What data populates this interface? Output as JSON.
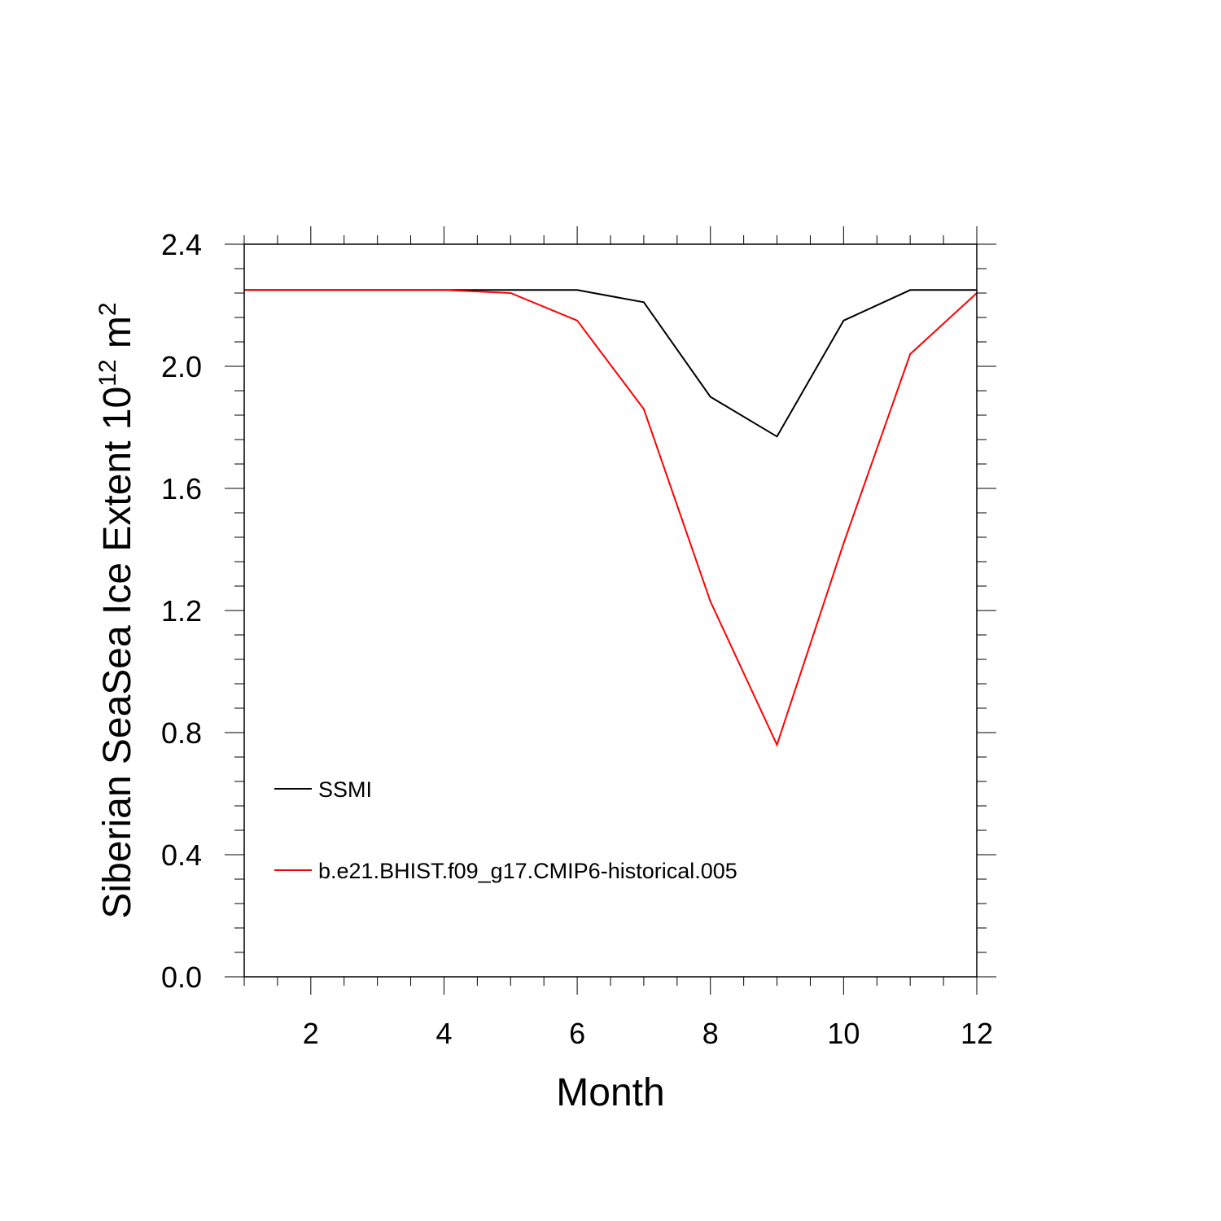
{
  "chart_data": {
    "type": "line",
    "xlabel": "Month",
    "ylabel": {
      "prefix": "Siberian SeaSea Ice Extent 10",
      "exponent": "12",
      "unit": " m",
      "unit_exponent": "2"
    },
    "xlim": [
      1,
      12
    ],
    "ylim": [
      0,
      2.4
    ],
    "xticks": [
      2,
      4,
      6,
      8,
      10,
      12
    ],
    "xtick_labels": [
      "2",
      "4",
      "6",
      "8",
      "10",
      "12"
    ],
    "yticks": [
      0,
      0.4,
      0.8,
      1.2,
      1.6,
      2.0,
      2.4
    ],
    "ytick_labels": [
      "0.0",
      "0.4",
      "0.8",
      "1.2",
      "1.6",
      "2.0",
      "2.4"
    ],
    "x": [
      1,
      2,
      3,
      4,
      5,
      6,
      7,
      8,
      9,
      10,
      11,
      12
    ],
    "series": [
      {
        "name": "SSMI",
        "color": "#000000",
        "values": [
          2.25,
          2.25,
          2.25,
          2.25,
          2.25,
          2.25,
          2.21,
          1.9,
          1.77,
          2.15,
          2.25,
          2.25
        ]
      },
      {
        "name": "b.e21.BHIST.f09_g17.CMIP6-historical.005",
        "color": "#ff0000",
        "values": [
          2.25,
          2.25,
          2.25,
          2.25,
          2.24,
          2.15,
          1.86,
          1.23,
          0.76,
          1.42,
          2.04,
          2.24
        ]
      }
    ],
    "grid": false,
    "legend_position": "lower-left, inside plot"
  }
}
